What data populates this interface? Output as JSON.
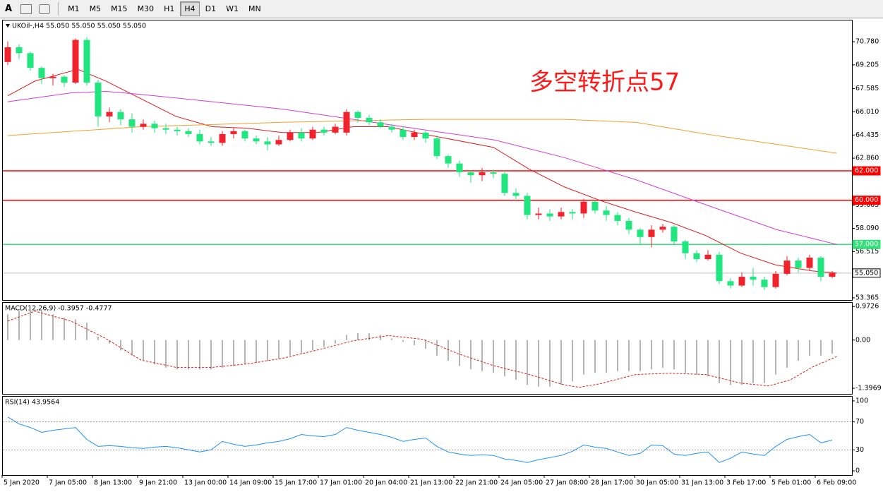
{
  "toolbar": {
    "text_tool": "A",
    "timeframes": [
      "M1",
      "M5",
      "M15",
      "M30",
      "H1",
      "H4",
      "D1",
      "W1",
      "MN"
    ],
    "selected": 5
  },
  "chart_data": [
    {
      "type": "candlestick",
      "title": "UKOil-,H4 55.050 55.050 55.050 55.050",
      "annotation": "多空转折点57",
      "up_color": "#f0232d",
      "down_color": "#1fe67e",
      "xlim": [
        0,
        74
      ],
      "ylim": [
        53.22,
        72.27
      ],
      "yticks": [
        {
          "value": 70.78,
          "label": "70.780"
        },
        69.205,
        67.585,
        {
          "value": 66.01,
          "label": "66.010"
        },
        64.435,
        {
          "value": 62.86,
          "label": "62.860"
        },
        59.665,
        {
          "value": 58.09,
          "label": "58.090"
        },
        56.515,
        53.365
      ],
      "open": [
        69.4,
        70.4,
        70.0,
        69.0,
        68.3,
        68.4,
        68.0,
        70.9,
        68.0,
        65.7,
        66.0,
        65.5,
        65.0,
        65.2,
        64.9,
        64.8,
        64.7,
        64.5,
        64.0,
        63.9,
        64.5,
        64.7,
        64.2,
        64.0,
        63.8,
        64.1,
        64.6,
        64.2,
        64.8,
        64.6,
        64.6,
        66.0,
        65.6,
        65.3,
        65.0,
        64.8,
        64.3,
        64.6,
        64.2,
        63.0,
        62.5,
        61.9,
        61.7,
        61.9,
        61.8,
        60.5,
        60.3,
        59.0,
        59.1,
        58.9,
        59.2,
        59.1,
        59.9,
        59.3,
        59.0,
        58.6,
        58.0,
        57.5,
        58.0,
        58.2,
        57.2,
        56.4,
        56.0,
        56.3,
        54.5,
        54.2,
        54.8,
        54.6,
        54.1,
        55.0,
        55.9,
        55.4,
        56.1,
        54.8
      ],
      "high": [
        70.8,
        70.6,
        70.1,
        69.1,
        68.6,
        68.5,
        71.0,
        71.1,
        68.2,
        66.3,
        66.2,
        65.9,
        65.5,
        65.4,
        65.2,
        65.0,
        64.9,
        64.8,
        64.3,
        64.7,
        64.9,
        64.8,
        64.4,
        64.3,
        64.4,
        64.8,
        64.9,
        65.0,
        65.0,
        65.2,
        66.2,
        66.1,
        65.8,
        65.5,
        65.2,
        65.0,
        64.8,
        64.7,
        64.4,
        63.1,
        62.7,
        62.0,
        62.2,
        62.1,
        62.0,
        60.8,
        60.5,
        59.5,
        59.4,
        59.5,
        59.4,
        60.1,
        60.0,
        59.6,
        59.2,
        58.8,
        58.1,
        58.3,
        58.4,
        58.3,
        57.3,
        56.6,
        56.6,
        56.5,
        54.7,
        55.1,
        55.4,
        54.8,
        55.2,
        56.2,
        56.1,
        56.3,
        56.2,
        55.2
      ],
      "low": [
        69.2,
        69.6,
        68.8,
        67.9,
        67.8,
        67.7,
        67.9,
        67.8,
        65.0,
        65.3,
        65.1,
        64.6,
        64.8,
        64.6,
        64.5,
        64.4,
        64.3,
        63.8,
        63.7,
        63.7,
        64.2,
        64.0,
        63.8,
        63.4,
        63.7,
        64.0,
        64.0,
        64.1,
        64.4,
        64.5,
        64.4,
        65.3,
        65.1,
        64.9,
        64.6,
        64.1,
        64.1,
        63.9,
        62.8,
        62.2,
        61.6,
        61.2,
        61.3,
        61.5,
        60.3,
        60.0,
        58.7,
        58.7,
        58.6,
        58.7,
        58.7,
        58.8,
        59.1,
        58.6,
        58.3,
        57.7,
        57.0,
        56.8,
        57.8,
        57.0,
        56.0,
        55.8,
        55.9,
        54.3,
        54.0,
        54.1,
        54.2,
        53.9,
        54.0,
        54.9,
        55.1,
        55.2,
        54.5,
        54.7
      ],
      "close": [
        70.4,
        70.0,
        69.0,
        68.3,
        68.4,
        68.0,
        70.9,
        68.0,
        65.7,
        66.0,
        65.5,
        65.0,
        65.2,
        64.9,
        64.8,
        64.7,
        64.5,
        64.0,
        63.9,
        64.5,
        64.7,
        64.2,
        64.0,
        63.8,
        64.1,
        64.6,
        64.2,
        64.8,
        64.6,
        65.0,
        66.0,
        65.6,
        65.3,
        65.0,
        64.8,
        64.3,
        64.6,
        64.2,
        63.0,
        62.5,
        61.9,
        61.7,
        61.9,
        61.8,
        60.5,
        60.3,
        59.0,
        59.1,
        58.9,
        59.2,
        59.1,
        59.9,
        59.3,
        59.0,
        58.6,
        58.0,
        57.5,
        58.0,
        58.2,
        57.2,
        56.4,
        56.0,
        56.3,
        54.5,
        54.2,
        54.8,
        54.6,
        54.1,
        55.0,
        55.9,
        55.4,
        56.1,
        54.8,
        55.05
      ],
      "lines": [
        {
          "color": "#e01b1b",
          "x": [
            0,
            2.4,
            6.2,
            8.7,
            11.8,
            14.9,
            18.1,
            21.2,
            24.3,
            27.4,
            30.6,
            33.7,
            36.8,
            43,
            46.2,
            49.3,
            52.4,
            55.6,
            58.7,
            61.8,
            64.9,
            68,
            71.2,
            73.4
          ],
          "values": [
            67.1,
            68.1,
            68.9,
            68.1,
            66.9,
            65.7,
            65.0,
            64.9,
            64.6,
            64.6,
            65.0,
            65.0,
            64.5,
            63.6,
            62.1,
            60.9,
            60.0,
            59.2,
            58.5,
            57.6,
            56.4,
            55.6,
            55.2,
            55.05
          ]
        },
        {
          "color": "#d23cd2",
          "x": [
            0,
            5.6,
            8.7,
            11.8,
            18.1,
            24.3,
            30.6,
            36.8,
            43.1,
            49.3,
            55.6,
            61.8,
            68.1,
            73.4
          ],
          "values": [
            66.7,
            67.3,
            67.4,
            67.2,
            66.7,
            66.2,
            65.5,
            64.8,
            64.1,
            62.9,
            61.4,
            59.7,
            58.0,
            57.0
          ]
        },
        {
          "color": "#f0a030",
          "x": [
            0,
            11.8,
            24.3,
            36.8,
            49.3,
            55.6,
            61.8,
            68.1,
            73.4
          ],
          "values": [
            64.4,
            65.0,
            65.3,
            65.5,
            65.5,
            65.3,
            64.5,
            63.8,
            63.2
          ]
        }
      ],
      "hlines": [
        {
          "value": 62,
          "label": "62.000",
          "color": "#ff0000"
        },
        {
          "value": 60,
          "label": "60.000",
          "color": "#ff0000"
        },
        {
          "value": 57,
          "label": "57.000",
          "color": "#33e07a"
        },
        {
          "value": 55.05,
          "label": "55.050",
          "color": "#c0c0c0"
        }
      ]
    },
    {
      "type": "macd",
      "title": "MACD(12,26,9) -0.3957 -0.4777",
      "xlim": [
        0,
        74
      ],
      "ylim": [
        -1.56,
        1.1
      ],
      "yticks": [
        0.9726,
        {
          "value": 0,
          "label": "0.00"
        },
        -1.3969
      ],
      "histogram_color": "#b4b4b4",
      "signal_color": "#e01b1b",
      "histogram": [
        0.75,
        0.85,
        0.9,
        0.85,
        0.75,
        0.65,
        0.6,
        0.5,
        0.1,
        -0.1,
        -0.3,
        -0.45,
        -0.6,
        -0.7,
        -0.8,
        -0.85,
        -0.85,
        -0.85,
        -0.85,
        -0.8,
        -0.75,
        -0.7,
        -0.65,
        -0.6,
        -0.55,
        -0.45,
        -0.4,
        -0.3,
        -0.2,
        -0.1,
        0.15,
        0.2,
        0.2,
        0.15,
        0.05,
        -0.05,
        -0.15,
        -0.25,
        -0.45,
        -0.6,
        -0.75,
        -0.85,
        -0.9,
        -0.95,
        -1.05,
        -1.15,
        -1.3,
        -1.35,
        -1.35,
        -1.3,
        -1.2,
        -1.0,
        -0.95,
        -0.95,
        -0.9,
        -0.9,
        -0.9,
        -0.85,
        -0.8,
        -0.85,
        -0.95,
        -1.0,
        -1.05,
        -1.25,
        -1.3,
        -1.3,
        -1.25,
        -1.25,
        -1.0,
        -0.8,
        -0.6,
        -0.45,
        -0.45,
        -0.3957
      ],
      "signal": {
        "x": [
          0,
          2.4,
          5.6,
          8.7,
          11.8,
          14.9,
          18.1,
          21.2,
          24.3,
          27.4,
          30.6,
          33.7,
          36.8,
          39.9,
          43.1,
          46.2,
          49.3,
          50.6,
          52.4,
          55.6,
          58.7,
          61.8,
          64.9,
          67.4,
          69.3,
          71.2,
          73.4
        ],
        "values": [
          0.55,
          0.84,
          0.55,
          0.04,
          -0.58,
          -0.79,
          -0.79,
          -0.69,
          -0.53,
          -0.29,
          -0.02,
          0.13,
          0.02,
          -0.4,
          -0.75,
          -1.0,
          -1.3,
          -1.37,
          -1.27,
          -1.0,
          -0.96,
          -1.0,
          -1.25,
          -1.33,
          -1.15,
          -0.79,
          -0.4777
        ]
      }
    },
    {
      "type": "line",
      "title": "RSI(14) 43.9564",
      "color": "#1e90ff",
      "xlim": [
        0,
        74
      ],
      "ylim": [
        -6,
        107
      ],
      "yticks": [
        100,
        70,
        30,
        0
      ],
      "levels": [
        70,
        30
      ],
      "values": [
        77,
        67,
        62,
        55,
        58,
        60,
        62,
        45,
        35,
        36,
        35,
        33,
        32,
        34,
        35,
        33,
        30,
        27,
        30,
        42,
        38,
        35,
        37,
        40,
        42,
        46,
        52,
        50,
        49,
        52,
        62,
        58,
        55,
        52,
        48,
        42,
        45,
        47,
        35,
        27,
        24,
        22,
        23,
        22,
        17,
        15,
        12,
        16,
        19,
        22,
        28,
        37,
        34,
        32,
        27,
        22,
        25,
        37,
        36,
        24,
        22,
        25,
        27,
        12,
        18,
        27,
        24,
        22,
        35,
        45,
        49,
        52,
        40,
        43.9564
      ],
      "xticks": [
        {
          "value": 0,
          "label": "5 Jan 2020"
        },
        {
          "value": 4,
          "label": "7 Jan 05:00"
        },
        {
          "value": 8,
          "label": "8 Jan 13:00"
        },
        {
          "value": 12,
          "label": "9 Jan 21:00"
        },
        {
          "value": 16,
          "label": "13 Jan 00:00"
        },
        {
          "value": 20,
          "label": "14 Jan 09:00"
        },
        {
          "value": 24,
          "label": "15 Jan 17:00"
        },
        {
          "value": 28,
          "label": "17 Jan 01:00"
        },
        {
          "value": 32,
          "label": "20 Jan 04:00"
        },
        {
          "value": 36,
          "label": "21 Jan 13:00"
        },
        {
          "value": 40,
          "label": "22 Jan 21:00"
        },
        {
          "value": 44,
          "label": "24 Jan 05:00"
        },
        {
          "value": 48,
          "label": "27 Jan 08:00"
        },
        {
          "value": 52,
          "label": "28 Jan 17:00"
        },
        {
          "value": 56,
          "label": "30 Jan 05:00"
        },
        {
          "value": 60,
          "label": "31 Jan 13:00"
        },
        {
          "value": 64,
          "label": "3 Feb 17:00"
        },
        {
          "value": 68,
          "label": "5 Feb 01:00"
        },
        {
          "value": 72,
          "label": "6 Feb 09:00"
        }
      ]
    }
  ]
}
